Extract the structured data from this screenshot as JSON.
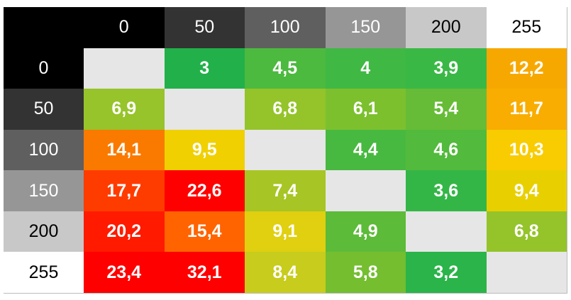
{
  "table": {
    "header": [
      "0",
      "50",
      "100",
      "150",
      "200",
      "255"
    ],
    "header_colors": [
      "#000000",
      "#333333",
      "#5f5f5f",
      "#969696",
      "#c8c8c8",
      "#ffffff"
    ],
    "empty_color": "#e6e6e6",
    "rows": [
      {
        "label": "0",
        "cells": [
          null,
          "3",
          "4,5",
          "4",
          "3,9",
          "12,2"
        ],
        "colors": [
          null,
          "#22b04a",
          "#4cb93f",
          "#40b844",
          "#3ab845",
          "#f7a800"
        ]
      },
      {
        "label": "50",
        "cells": [
          "6,9",
          null,
          "6,8",
          "6,1",
          "5,4",
          "11,7"
        ],
        "colors": [
          "#96c42a",
          null,
          "#94c42a",
          "#7cc02e",
          "#66bc36",
          "#f8ad00"
        ]
      },
      {
        "label": "100",
        "cells": [
          "14,1",
          "9,5",
          null,
          "4,4",
          "4,6",
          "10,3"
        ],
        "colors": [
          "#fa7a00",
          "#f0d000",
          null,
          "#48b940",
          "#52ba3c",
          "#f8cc00"
        ]
      },
      {
        "label": "150",
        "cells": [
          "17,7",
          "22,6",
          "7,4",
          null,
          "3,6",
          "9,4"
        ],
        "colors": [
          "#ff3c00",
          "#ff0000",
          "#a7c524",
          null,
          "#34b647",
          "#e8d000"
        ]
      },
      {
        "label": "200",
        "cells": [
          "20,2",
          "15,4",
          "9,1",
          "4,9",
          null,
          "6,8"
        ],
        "colors": [
          "#ff1a00",
          "#ff6400",
          "#e0d010",
          "#5cbb38",
          null,
          "#94c42a"
        ]
      },
      {
        "label": "255",
        "cells": [
          "23,4",
          "32,1",
          "8,4",
          "5,8",
          "3,2",
          null
        ],
        "colors": [
          "#ff0000",
          "#ff0000",
          "#c8cc1c",
          "#74be30",
          "#2ab449",
          null
        ]
      }
    ]
  }
}
